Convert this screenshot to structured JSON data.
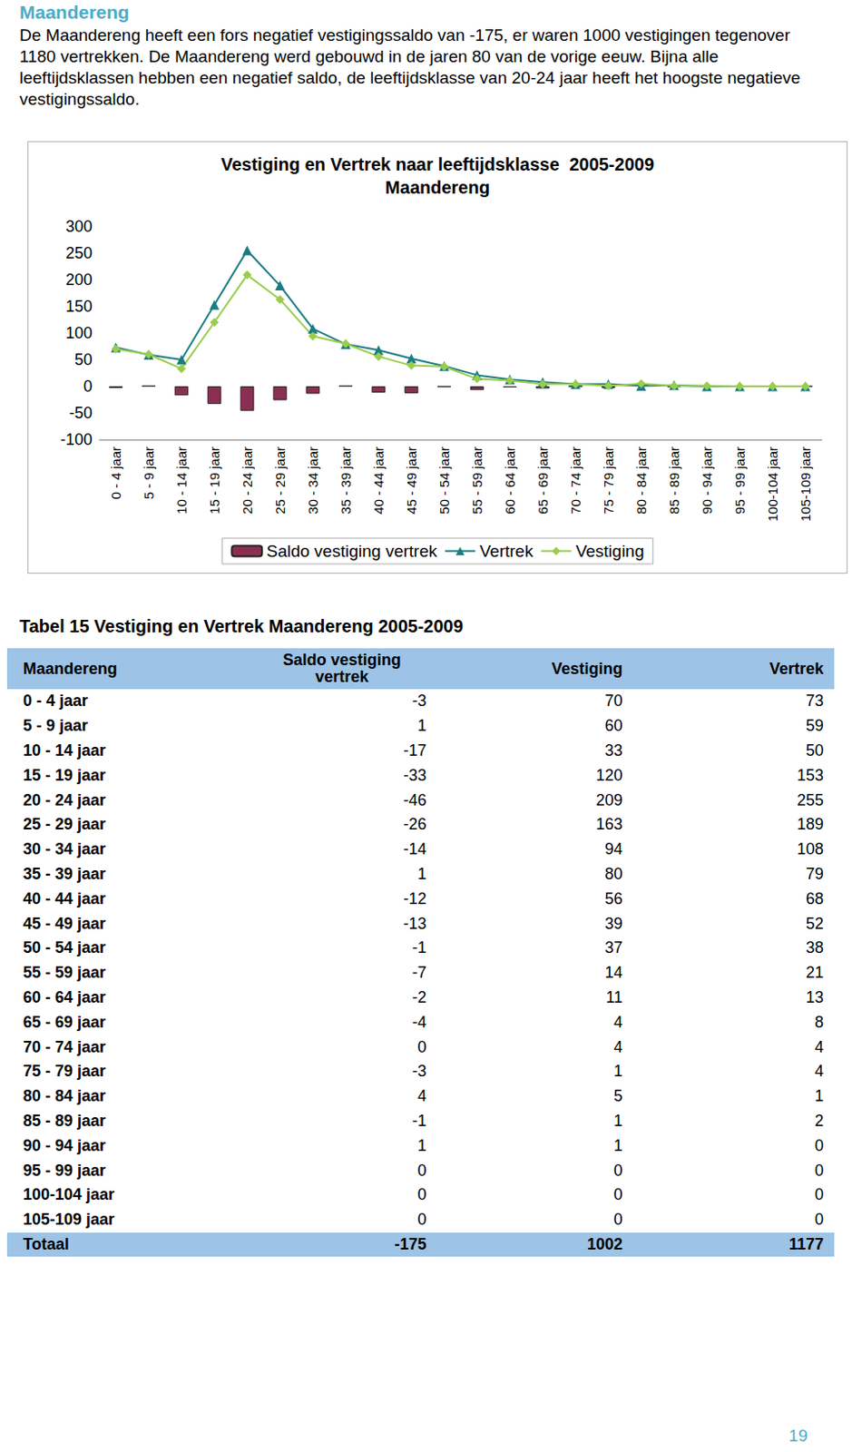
{
  "heading": "Maandereng",
  "paragraph": "De Maandereng heeft een fors negatief vestigingssaldo van -175, er waren 1000 vestigingen tegenover 1180 vertrekken. De Maandereng werd gebouwd in de jaren 80 van de vorige eeuw. Bijna alle leeftijdsklassen hebben een negatief saldo, de leeftijdsklasse van 20-24 jaar heeft het hoogste negatieve vestigingssaldo.",
  "chart_data": {
    "type": "bar",
    "title": "Vestiging en Vertrek naar leeftijdsklasse  2005-2009",
    "subtitle": "Maandereng",
    "categories": [
      "0 - 4 jaar",
      "5 - 9 jaar",
      "10 - 14 jaar",
      "15 - 19 jaar",
      "20 - 24 jaar",
      "25 - 29 jaar",
      "30 - 34 jaar",
      "35 - 39 jaar",
      "40 - 44 jaar",
      "45 - 49 jaar",
      "50 - 54 jaar",
      "55 - 59 jaar",
      "60 - 64 jaar",
      "65 - 69 jaar",
      "70 - 74 jaar",
      "75 - 79 jaar",
      "80 - 84 jaar",
      "85 - 89 jaar",
      "90 - 94 jaar",
      "95 - 99 jaar",
      "100-104 jaar",
      "105-109 jaar"
    ],
    "series": [
      {
        "name": "Saldo vestiging vertrek",
        "type": "bar",
        "color": "#8B2F52",
        "values": [
          -3,
          1,
          -17,
          -33,
          -46,
          -26,
          -14,
          1,
          -12,
          -13,
          -1,
          -7,
          -2,
          -4,
          0,
          -3,
          4,
          -1,
          1,
          0,
          0,
          0
        ]
      },
      {
        "name": "Vertrek",
        "type": "line",
        "color": "#1B7C83",
        "marker": "triangle",
        "values": [
          73,
          59,
          50,
          153,
          255,
          189,
          108,
          79,
          68,
          52,
          38,
          21,
          13,
          8,
          4,
          4,
          1,
          2,
          0,
          0,
          0,
          0
        ]
      },
      {
        "name": "Vestiging",
        "type": "line",
        "color": "#9ACD4B",
        "marker": "diamond",
        "values": [
          70,
          60,
          33,
          120,
          209,
          163,
          94,
          80,
          56,
          39,
          37,
          14,
          11,
          4,
          4,
          1,
          5,
          1,
          1,
          0,
          0,
          0
        ]
      }
    ],
    "ylim": [
      -100,
      300
    ],
    "yticks": [
      -100,
      -50,
      0,
      50,
      100,
      150,
      200,
      250,
      300
    ],
    "grid": false,
    "legend": "bottom"
  },
  "table": {
    "title": "Tabel 15 Vestiging en Vertrek Maandereng 2005-2009",
    "header": [
      "Maandereng",
      "Saldo vestiging vertrek",
      "Vestiging",
      "Vertrek"
    ],
    "rows": [
      [
        "0 - 4 jaar",
        -3,
        70,
        73
      ],
      [
        "5 - 9 jaar",
        1,
        60,
        59
      ],
      [
        "10 - 14 jaar",
        -17,
        33,
        50
      ],
      [
        "15 - 19 jaar",
        -33,
        120,
        153
      ],
      [
        "20 - 24 jaar",
        -46,
        209,
        255
      ],
      [
        "25 - 29 jaar",
        -26,
        163,
        189
      ],
      [
        "30 - 34 jaar",
        -14,
        94,
        108
      ],
      [
        "35 - 39 jaar",
        1,
        80,
        79
      ],
      [
        "40 - 44 jaar",
        -12,
        56,
        68
      ],
      [
        "45 - 49 jaar",
        -13,
        39,
        52
      ],
      [
        "50 - 54 jaar",
        -1,
        37,
        38
      ],
      [
        "55 - 59 jaar",
        -7,
        14,
        21
      ],
      [
        "60 - 64 jaar",
        -2,
        11,
        13
      ],
      [
        "65 - 69 jaar",
        -4,
        4,
        8
      ],
      [
        "70 - 74 jaar",
        0,
        4,
        4
      ],
      [
        "75 - 79 jaar",
        -3,
        1,
        4
      ],
      [
        "80 - 84 jaar",
        4,
        5,
        1
      ],
      [
        "85 - 89 jaar",
        -1,
        1,
        2
      ],
      [
        "90 - 94 jaar",
        1,
        1,
        0
      ],
      [
        "95 - 99 jaar",
        0,
        0,
        0
      ],
      [
        "100-104 jaar",
        0,
        0,
        0
      ],
      [
        "105-109 jaar",
        0,
        0,
        0
      ]
    ],
    "total": [
      "Totaal",
      -175,
      1002,
      1177
    ]
  },
  "page_number": 19
}
